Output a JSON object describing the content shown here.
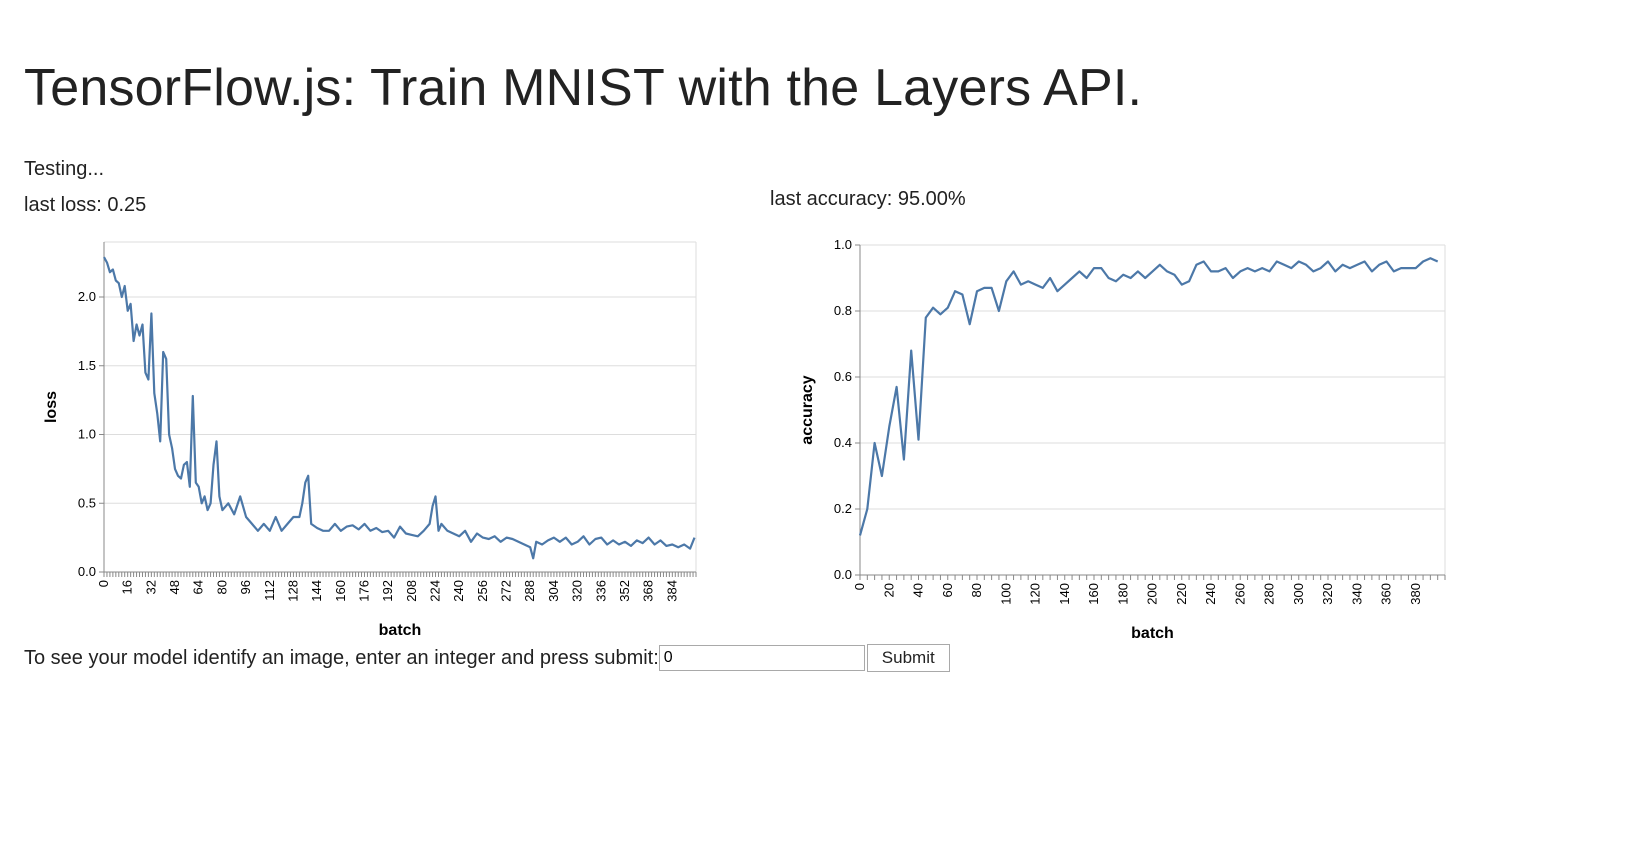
{
  "page": {
    "title": "TensorFlow.js: Train MNIST with the Layers API.",
    "status": "Testing...",
    "last_loss": "last loss: 0.25",
    "last_accuracy": "last accuracy: 95.00%"
  },
  "predict": {
    "prompt": "To see your model identify an image, enter an integer and press submit:",
    "input_value": "0",
    "submit_label": "Submit"
  },
  "colors": {
    "line": "#4c78a8",
    "grid": "#dddddd",
    "axis": "#888888"
  },
  "chart_data": [
    {
      "type": "line",
      "xlabel": "batch",
      "ylabel": "loss",
      "xlim": [
        0,
        400
      ],
      "ylim": [
        0,
        2.4
      ],
      "yticks": [
        "0.0",
        "0.5",
        "1.0",
        "1.5",
        "2.0"
      ],
      "ytick_values": [
        0,
        0.5,
        1.0,
        1.5,
        2.0
      ],
      "xticks": [
        "0",
        "16",
        "32",
        "48",
        "64",
        "80",
        "96",
        "112",
        "128",
        "144",
        "160",
        "176",
        "192",
        "208",
        "224",
        "240",
        "256",
        "272",
        "288",
        "304",
        "320",
        "336",
        "352",
        "368",
        "384"
      ],
      "xtick_values": [
        0,
        16,
        32,
        48,
        64,
        80,
        96,
        112,
        128,
        144,
        160,
        176,
        192,
        208,
        224,
        240,
        256,
        272,
        288,
        304,
        320,
        336,
        352,
        368,
        384
      ],
      "series": [
        {
          "x": [
            0,
            2,
            4,
            6,
            8,
            10,
            12,
            14,
            16,
            18,
            20,
            22,
            24,
            26,
            28,
            30,
            32,
            34,
            36,
            38,
            40,
            42,
            44,
            46,
            48,
            50,
            52,
            54,
            56,
            58,
            60,
            62,
            64,
            66,
            68,
            70,
            72,
            74,
            76,
            78,
            80,
            84,
            88,
            92,
            96,
            100,
            104,
            108,
            112,
            116,
            120,
            124,
            128,
            132,
            134,
            136,
            138,
            140,
            144,
            148,
            152,
            156,
            160,
            164,
            168,
            172,
            176,
            180,
            184,
            188,
            192,
            196,
            200,
            204,
            208,
            212,
            216,
            220,
            222,
            224,
            226,
            228,
            232,
            236,
            240,
            244,
            248,
            252,
            256,
            260,
            264,
            268,
            272,
            276,
            280,
            284,
            288,
            290,
            292,
            296,
            300,
            304,
            308,
            312,
            316,
            320,
            324,
            328,
            332,
            336,
            340,
            344,
            348,
            352,
            356,
            360,
            364,
            368,
            372,
            376,
            380,
            384,
            388,
            392,
            396,
            399
          ],
          "y": [
            2.29,
            2.25,
            2.18,
            2.2,
            2.12,
            2.1,
            2.0,
            2.08,
            1.9,
            1.95,
            1.68,
            1.8,
            1.72,
            1.8,
            1.45,
            1.4,
            1.88,
            1.3,
            1.15,
            0.95,
            1.6,
            1.55,
            1.0,
            0.9,
            0.75,
            0.7,
            0.68,
            0.78,
            0.8,
            0.62,
            1.28,
            0.65,
            0.62,
            0.5,
            0.55,
            0.45,
            0.5,
            0.78,
            0.95,
            0.55,
            0.45,
            0.5,
            0.42,
            0.55,
            0.4,
            0.35,
            0.3,
            0.35,
            0.3,
            0.4,
            0.3,
            0.35,
            0.4,
            0.4,
            0.5,
            0.65,
            0.7,
            0.35,
            0.32,
            0.3,
            0.3,
            0.35,
            0.3,
            0.33,
            0.34,
            0.31,
            0.35,
            0.3,
            0.32,
            0.29,
            0.3,
            0.25,
            0.33,
            0.28,
            0.27,
            0.26,
            0.3,
            0.35,
            0.48,
            0.55,
            0.3,
            0.35,
            0.3,
            0.28,
            0.26,
            0.3,
            0.22,
            0.28,
            0.25,
            0.24,
            0.26,
            0.22,
            0.25,
            0.24,
            0.22,
            0.2,
            0.18,
            0.1,
            0.22,
            0.2,
            0.23,
            0.25,
            0.22,
            0.25,
            0.2,
            0.22,
            0.26,
            0.2,
            0.24,
            0.25,
            0.2,
            0.23,
            0.2,
            0.22,
            0.19,
            0.23,
            0.21,
            0.25,
            0.2,
            0.23,
            0.19,
            0.2,
            0.18,
            0.2,
            0.17,
            0.25
          ]
        }
      ]
    },
    {
      "type": "line",
      "xlabel": "batch",
      "ylabel": "accuracy",
      "xlim": [
        0,
        400
      ],
      "ylim": [
        0,
        1.0
      ],
      "yticks": [
        "0.0",
        "0.2",
        "0.4",
        "0.6",
        "0.8",
        "1.0"
      ],
      "ytick_values": [
        0,
        0.2,
        0.4,
        0.6,
        0.8,
        1.0
      ],
      "xticks": [
        "0",
        "20",
        "40",
        "60",
        "80",
        "100",
        "120",
        "140",
        "160",
        "180",
        "200",
        "220",
        "240",
        "260",
        "280",
        "300",
        "320",
        "340",
        "360",
        "380"
      ],
      "xtick_values": [
        0,
        20,
        40,
        60,
        80,
        100,
        120,
        140,
        160,
        180,
        200,
        220,
        240,
        260,
        280,
        300,
        320,
        340,
        360,
        380
      ],
      "series": [
        {
          "x": [
            0,
            5,
            10,
            15,
            20,
            25,
            30,
            35,
            40,
            45,
            50,
            55,
            60,
            65,
            70,
            75,
            80,
            85,
            90,
            95,
            100,
            105,
            110,
            115,
            120,
            125,
            130,
            135,
            140,
            145,
            150,
            155,
            160,
            165,
            170,
            175,
            180,
            185,
            190,
            195,
            200,
            205,
            210,
            215,
            220,
            225,
            230,
            235,
            240,
            245,
            250,
            255,
            260,
            265,
            270,
            275,
            280,
            285,
            290,
            295,
            300,
            305,
            310,
            315,
            320,
            325,
            330,
            335,
            340,
            345,
            350,
            355,
            360,
            365,
            370,
            375,
            380,
            385,
            390,
            395
          ],
          "y": [
            0.12,
            0.2,
            0.4,
            0.3,
            0.45,
            0.57,
            0.35,
            0.68,
            0.41,
            0.78,
            0.81,
            0.79,
            0.81,
            0.86,
            0.85,
            0.76,
            0.86,
            0.87,
            0.87,
            0.8,
            0.89,
            0.92,
            0.88,
            0.89,
            0.88,
            0.87,
            0.9,
            0.86,
            0.88,
            0.9,
            0.92,
            0.9,
            0.93,
            0.93,
            0.9,
            0.89,
            0.91,
            0.9,
            0.92,
            0.9,
            0.92,
            0.94,
            0.92,
            0.91,
            0.88,
            0.89,
            0.94,
            0.95,
            0.92,
            0.92,
            0.93,
            0.9,
            0.92,
            0.93,
            0.92,
            0.93,
            0.92,
            0.95,
            0.94,
            0.93,
            0.95,
            0.94,
            0.92,
            0.93,
            0.95,
            0.92,
            0.94,
            0.93,
            0.94,
            0.95,
            0.92,
            0.94,
            0.95,
            0.92,
            0.93,
            0.93,
            0.93,
            0.95,
            0.96,
            0.95
          ]
        }
      ]
    }
  ]
}
